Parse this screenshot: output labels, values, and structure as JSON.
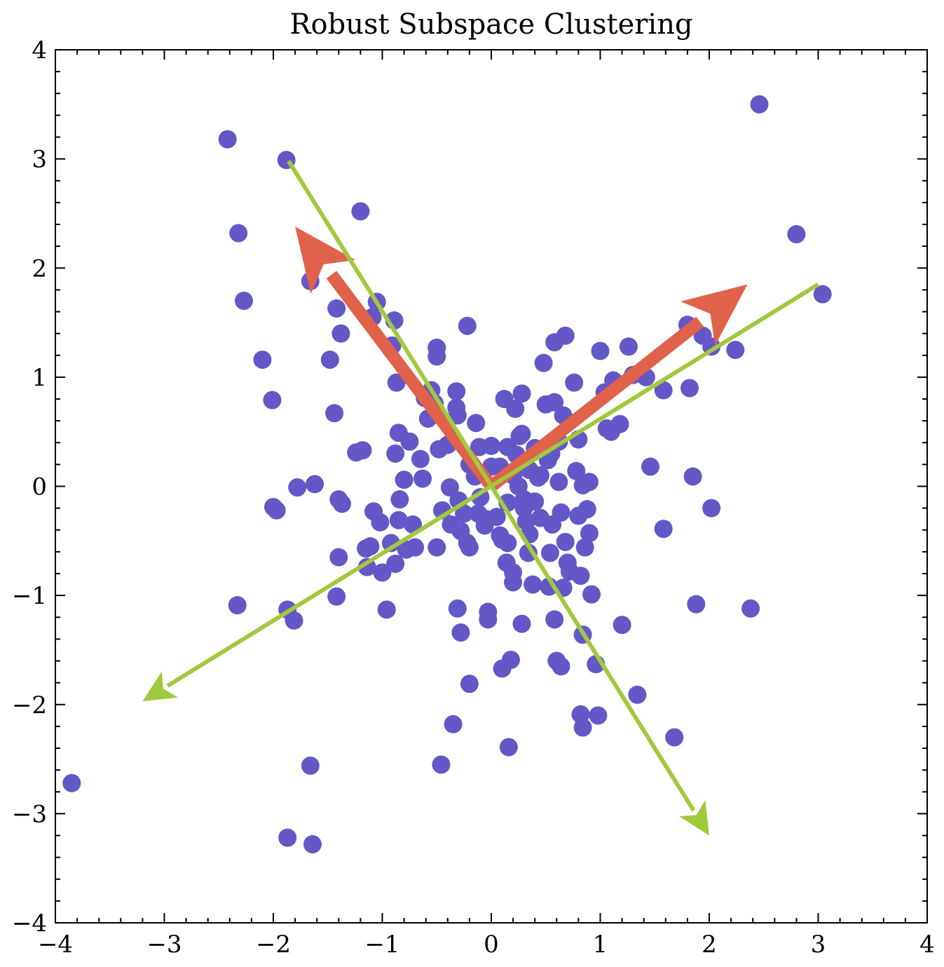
{
  "chart_data": {
    "type": "scatter",
    "title": "Robust Subspace Clustering",
    "xlabel": "",
    "ylabel": "",
    "xlim": [
      -4,
      4
    ],
    "ylim": [
      -4,
      4
    ],
    "xticks": [
      -4,
      -3,
      -2,
      -1,
      0,
      1,
      2,
      3,
      4
    ],
    "yticks": [
      -4,
      -3,
      -2,
      -1,
      0,
      1,
      2,
      3,
      4
    ],
    "xtick_labels": [
      "−4",
      "−3",
      "−2",
      "−1",
      "0",
      "1",
      "2",
      "3",
      "4"
    ],
    "ytick_labels": [
      "−4",
      "−3",
      "−2",
      "−1",
      "0",
      "1",
      "2",
      "3",
      "4"
    ],
    "grid": false,
    "colors": {
      "points": "#6457c8",
      "red_arrows": "#e0624a",
      "green_arrows": "#a1c93d"
    },
    "points": [
      [
        -3.85,
        -2.72
      ],
      [
        -2.42,
        3.18
      ],
      [
        -2.32,
        2.32
      ],
      [
        -2.27,
        1.7
      ],
      [
        -2.1,
        1.16
      ],
      [
        -2.01,
        0.79
      ],
      [
        -2.0,
        -0.19
      ],
      [
        -1.97,
        -0.22
      ],
      [
        -2.33,
        -1.09
      ],
      [
        -1.88,
        2.99
      ],
      [
        -1.78,
        -0.01
      ],
      [
        -1.62,
        0.02
      ],
      [
        -1.66,
        1.88
      ],
      [
        -1.42,
        1.63
      ],
      [
        -1.38,
        1.4
      ],
      [
        -1.48,
        1.16
      ],
      [
        -1.44,
        0.67
      ],
      [
        -1.4,
        -0.12
      ],
      [
        -1.37,
        -0.16
      ],
      [
        -1.4,
        -0.65
      ],
      [
        -1.42,
        -1.01
      ],
      [
        -1.87,
        -1.13
      ],
      [
        -1.81,
        -1.23
      ],
      [
        -1.66,
        -2.56
      ],
      [
        -1.87,
        -3.22
      ],
      [
        -1.64,
        -3.28
      ],
      [
        -1.2,
        2.52
      ],
      [
        -1.24,
        0.31
      ],
      [
        -1.18,
        0.33
      ],
      [
        -1.09,
        1.55
      ],
      [
        -1.05,
        1.69
      ],
      [
        -1.0,
        -0.79
      ],
      [
        -1.08,
        -0.23
      ],
      [
        -1.02,
        -0.33
      ],
      [
        -1.15,
        -0.57
      ],
      [
        -1.11,
        -0.55
      ],
      [
        -1.14,
        -0.74
      ],
      [
        -0.96,
        -1.13
      ],
      [
        -0.89,
        1.52
      ],
      [
        -0.91,
        1.29
      ],
      [
        -0.87,
        0.95
      ],
      [
        -0.85,
        0.49
      ],
      [
        -0.88,
        0.3
      ],
      [
        -0.8,
        0.06
      ],
      [
        -0.84,
        -0.12
      ],
      [
        -0.85,
        -0.31
      ],
      [
        -0.92,
        -0.52
      ],
      [
        -0.88,
        -0.71
      ],
      [
        -0.78,
        -0.58
      ],
      [
        -0.75,
        0.41
      ],
      [
        -0.72,
        -0.35
      ],
      [
        -0.7,
        -0.56
      ],
      [
        -0.65,
        0.25
      ],
      [
        -0.63,
        0.07
      ],
      [
        -0.61,
        0.81
      ],
      [
        -0.58,
        0.62
      ],
      [
        -0.55,
        0.88
      ],
      [
        -0.52,
        0.76
      ],
      [
        -0.5,
        1.27
      ],
      [
        -0.5,
        1.19
      ],
      [
        -0.48,
        0.34
      ],
      [
        -0.5,
        -0.56
      ],
      [
        -0.45,
        -0.22
      ],
      [
        -0.4,
        0.38
      ],
      [
        -0.38,
        -0.01
      ],
      [
        -0.37,
        -0.35
      ],
      [
        -0.35,
        -2.18
      ],
      [
        -0.46,
        -2.55
      ],
      [
        -0.32,
        0.87
      ],
      [
        -0.32,
        0.72
      ],
      [
        -0.31,
        0.65
      ],
      [
        -0.3,
        -0.13
      ],
      [
        -0.28,
        -0.41
      ],
      [
        -0.31,
        -1.12
      ],
      [
        -0.28,
        -1.34
      ],
      [
        -0.22,
        1.47
      ],
      [
        -0.22,
        -0.52
      ],
      [
        -0.2,
        -0.56
      ],
      [
        -0.2,
        -1.81
      ],
      [
        -0.14,
        0.58
      ],
      [
        -0.15,
        0.09
      ],
      [
        -0.12,
        -0.25
      ],
      [
        -0.11,
        0.36
      ],
      [
        -0.06,
        -0.36
      ],
      [
        -0.03,
        -1.15
      ],
      [
        -0.03,
        -1.22
      ],
      [
        0.0,
        0.37
      ],
      [
        0.0,
        0.18
      ],
      [
        0.05,
        -0.28
      ],
      [
        0.08,
        -0.45
      ],
      [
        0.1,
        -0.49
      ],
      [
        0.1,
        -1.67
      ],
      [
        0.12,
        0.8
      ],
      [
        0.14,
        -0.7
      ],
      [
        0.15,
        -0.52
      ],
      [
        0.15,
        0.36
      ],
      [
        0.16,
        -2.39
      ],
      [
        0.18,
        -1.59
      ],
      [
        0.2,
        -0.79
      ],
      [
        0.2,
        -0.88
      ],
      [
        0.22,
        0.71
      ],
      [
        0.23,
        0.29
      ],
      [
        0.25,
        0.0
      ],
      [
        0.26,
        0.46
      ],
      [
        0.28,
        0.48
      ],
      [
        0.28,
        0.85
      ],
      [
        0.28,
        -1.26
      ],
      [
        0.3,
        -0.12
      ],
      [
        0.32,
        -0.32
      ],
      [
        0.34,
        -0.61
      ],
      [
        0.35,
        -0.44
      ],
      [
        0.38,
        -0.9
      ],
      [
        0.4,
        -0.14
      ],
      [
        0.43,
        0.08
      ],
      [
        0.45,
        -0.29
      ],
      [
        0.48,
        1.13
      ],
      [
        0.5,
        0.75
      ],
      [
        0.52,
        0.24
      ],
      [
        0.53,
        -0.92
      ],
      [
        0.54,
        -0.61
      ],
      [
        0.56,
        -0.35
      ],
      [
        0.58,
        0.77
      ],
      [
        0.58,
        -1.22
      ],
      [
        0.58,
        1.32
      ],
      [
        0.6,
        -1.6
      ],
      [
        0.62,
        0.41
      ],
      [
        0.62,
        0.04
      ],
      [
        0.64,
        -0.24
      ],
      [
        0.64,
        -1.65
      ],
      [
        0.66,
        0.65
      ],
      [
        0.66,
        -0.93
      ],
      [
        0.68,
        1.38
      ],
      [
        0.68,
        -0.51
      ],
      [
        0.7,
        -0.7
      ],
      [
        0.72,
        -0.78
      ],
      [
        0.76,
        0.95
      ],
      [
        0.78,
        0.14
      ],
      [
        0.8,
        0.43
      ],
      [
        0.8,
        -0.27
      ],
      [
        0.82,
        -0.82
      ],
      [
        0.82,
        -2.09
      ],
      [
        0.84,
        -2.21
      ],
      [
        0.84,
        0.01
      ],
      [
        0.84,
        -1.36
      ],
      [
        0.86,
        -0.56
      ],
      [
        0.88,
        -0.21
      ],
      [
        0.9,
        0.04
      ],
      [
        0.9,
        -0.43
      ],
      [
        0.92,
        -0.99
      ],
      [
        0.96,
        -1.63
      ],
      [
        0.98,
        -2.1
      ],
      [
        1.0,
        1.24
      ],
      [
        1.04,
        0.86
      ],
      [
        1.06,
        0.53
      ],
      [
        1.1,
        0.5
      ],
      [
        1.12,
        0.97
      ],
      [
        1.18,
        0.57
      ],
      [
        1.2,
        -1.27
      ],
      [
        1.26,
        1.28
      ],
      [
        1.3,
        1.02
      ],
      [
        1.34,
        -1.91
      ],
      [
        1.42,
        1.0
      ],
      [
        1.46,
        0.18
      ],
      [
        1.58,
        -0.39
      ],
      [
        1.58,
        0.88
      ],
      [
        1.68,
        -2.3
      ],
      [
        1.8,
        1.48
      ],
      [
        1.82,
        0.9
      ],
      [
        1.85,
        0.09
      ],
      [
        1.88,
        -1.08
      ],
      [
        1.94,
        1.38
      ],
      [
        2.02,
        1.28
      ],
      [
        2.02,
        -0.2
      ],
      [
        2.24,
        1.25
      ],
      [
        2.38,
        -1.12
      ],
      [
        2.46,
        3.5
      ],
      [
        2.8,
        2.31
      ],
      [
        3.04,
        1.76
      ],
      [
        0.2,
        0.1
      ],
      [
        0.08,
        0.18
      ],
      [
        0.15,
        -0.15
      ],
      [
        -0.1,
        -0.1
      ],
      [
        -0.2,
        0.2
      ],
      [
        0.35,
        0.15
      ],
      [
        0.45,
        0.1
      ],
      [
        0.3,
        -0.2
      ],
      [
        -0.05,
        -0.3
      ],
      [
        0.55,
        0.3
      ],
      [
        -0.25,
        -0.25
      ],
      [
        0.4,
        0.35
      ]
    ],
    "arrows": [
      {
        "kind": "red",
        "from": [
          0,
          0
        ],
        "to": [
          -1.8,
          2.38
        ]
      },
      {
        "kind": "red",
        "from": [
          0,
          0
        ],
        "to": [
          2.35,
          1.85
        ]
      },
      {
        "kind": "green",
        "from": [
          -1.86,
          2.98
        ],
        "to": [
          2.0,
          -3.2
        ]
      },
      {
        "kind": "green",
        "from": [
          3.0,
          1.85
        ],
        "to": [
          -3.2,
          -1.97
        ]
      }
    ]
  }
}
